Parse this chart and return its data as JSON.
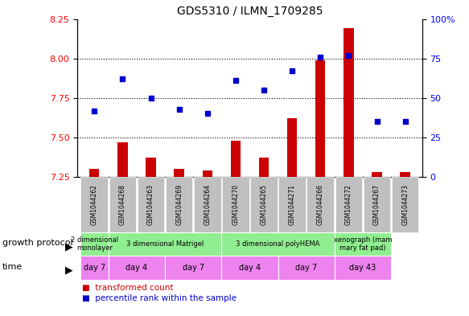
{
  "title": "GDS5310 / ILMN_1709285",
  "samples": [
    "GSM1044262",
    "GSM1044268",
    "GSM1044263",
    "GSM1044269",
    "GSM1044264",
    "GSM1044270",
    "GSM1044265",
    "GSM1044271",
    "GSM1044266",
    "GSM1044272",
    "GSM1044267",
    "GSM1044273"
  ],
  "transformed_count": [
    7.3,
    7.47,
    7.37,
    7.3,
    7.29,
    7.48,
    7.37,
    7.62,
    7.99,
    8.19,
    7.28,
    7.28
  ],
  "percentile_rank": [
    42,
    62,
    50,
    43,
    40,
    61,
    55,
    67,
    76,
    77,
    35,
    35
  ],
  "ylim_left": [
    7.25,
    8.25
  ],
  "ylim_right": [
    0,
    100
  ],
  "yticks_left": [
    7.25,
    7.5,
    7.75,
    8.0,
    8.25
  ],
  "yticks_right": [
    0,
    25,
    50,
    75,
    100
  ],
  "bar_color": "#cc0000",
  "dot_color": "#0000cc",
  "gp_groups": [
    {
      "label": "2 dimensional\nmonolayer",
      "start": 0,
      "end": 1
    },
    {
      "label": "3 dimensional Matrigel",
      "start": 1,
      "end": 5
    },
    {
      "label": "3 dimensional polyHEMA",
      "start": 5,
      "end": 9
    },
    {
      "label": "xenograph (mam\nmary fat pad)",
      "start": 9,
      "end": 11
    }
  ],
  "time_groups": [
    {
      "label": "day 7",
      "start": 0,
      "end": 1
    },
    {
      "label": "day 4",
      "start": 1,
      "end": 3
    },
    {
      "label": "day 7",
      "start": 3,
      "end": 5
    },
    {
      "label": "day 4",
      "start": 5,
      "end": 7
    },
    {
      "label": "day 7",
      "start": 7,
      "end": 9
    },
    {
      "label": "day 43",
      "start": 9,
      "end": 11
    }
  ],
  "growth_protocol_label": "growth protocol",
  "time_label": "time",
  "legend_bar_label": "transformed count",
  "legend_dot_label": "percentile rank within the sample",
  "sample_bg_color": "#c0c0c0",
  "gp_color": "#90ee90",
  "time_color": "#ee82ee",
  "bar_width": 0.35
}
